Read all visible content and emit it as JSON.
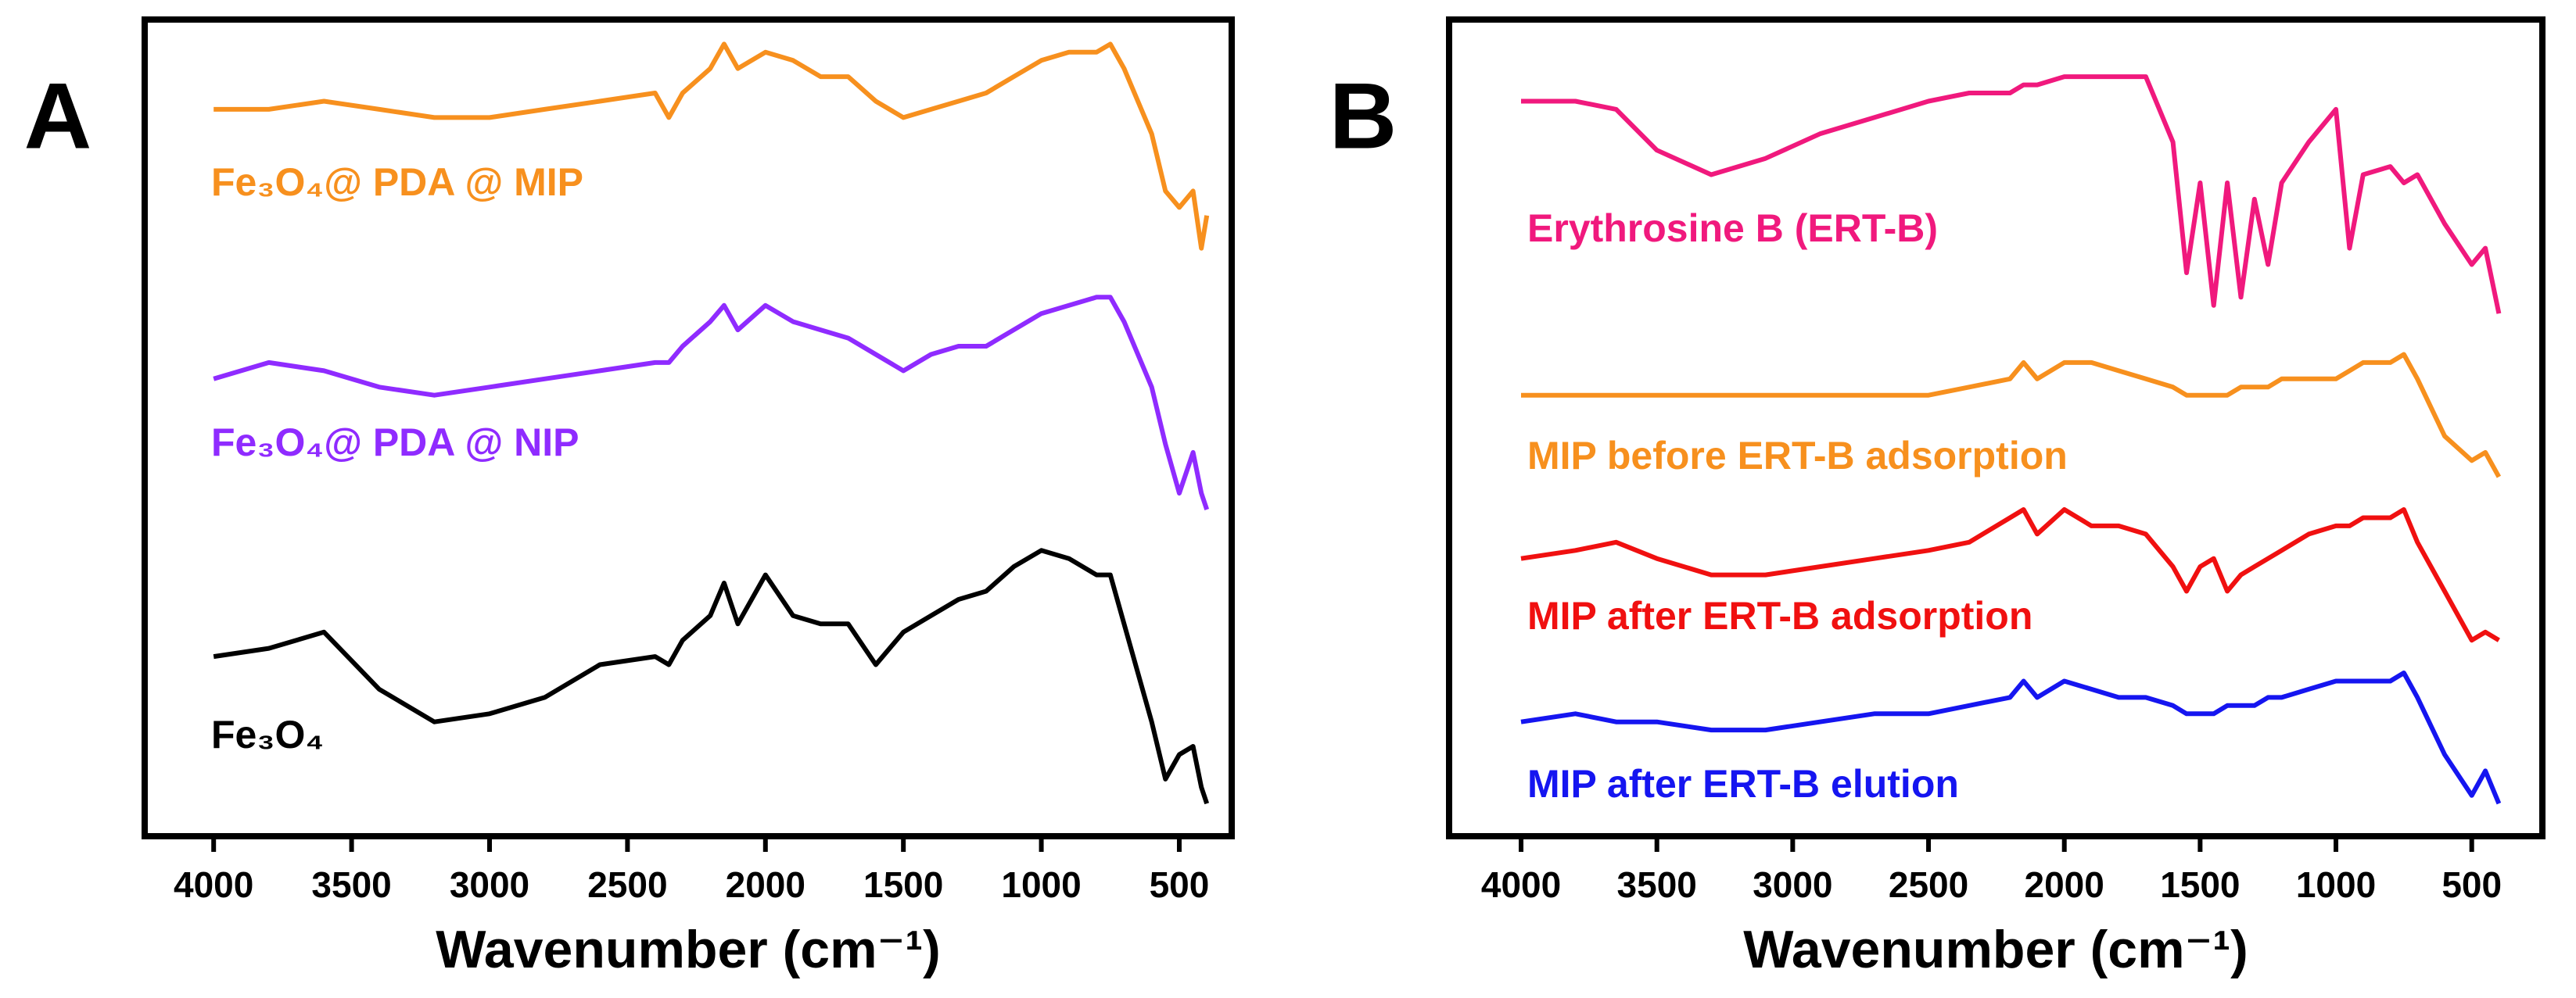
{
  "chart_data": [
    {
      "type": "line",
      "title": "A",
      "xlabel": "Wavenumber (cm⁻¹)",
      "xlim": [
        4250,
        310
      ],
      "xticks": [
        4000,
        3500,
        3000,
        2500,
        2000,
        1500,
        1000,
        500
      ],
      "ylim": [
        0,
        100
      ],
      "x": [
        4000,
        3800,
        3600,
        3400,
        3200,
        3000,
        2800,
        2600,
        2400,
        2350,
        2300,
        2200,
        2150,
        2100,
        2000,
        1900,
        1800,
        1700,
        1600,
        1500,
        1400,
        1300,
        1200,
        1100,
        1000,
        900,
        800,
        750,
        700,
        600,
        550,
        500,
        450,
        420,
        400
      ],
      "series": [
        {
          "name": "Fe₃O₄@ PDA @ MIP",
          "color": "#f7901e",
          "values": [
            89,
            89,
            90,
            89,
            88,
            88,
            89,
            90,
            91,
            88,
            91,
            94,
            97,
            94,
            96,
            95,
            93,
            93,
            90,
            88,
            89,
            90,
            91,
            93,
            95,
            96,
            96,
            97,
            94,
            86,
            79,
            77,
            79,
            72,
            76
          ]
        },
        {
          "name": "Fe₃O₄@ PDA @ NIP",
          "color": "#8f2bff",
          "values": [
            56,
            58,
            57,
            55,
            54,
            55,
            56,
            57,
            58,
            58,
            60,
            63,
            65,
            62,
            65,
            63,
            62,
            61,
            59,
            57,
            59,
            60,
            60,
            62,
            64,
            65,
            66,
            66,
            63,
            55,
            48,
            42,
            47,
            42,
            40
          ]
        },
        {
          "name": "Fe₃O₄",
          "color": "#000000",
          "values": [
            22,
            23,
            25,
            18,
            14,
            15,
            17,
            21,
            22,
            21,
            24,
            27,
            31,
            26,
            32,
            27,
            26,
            26,
            21,
            25,
            27,
            29,
            30,
            33,
            35,
            34,
            32,
            32,
            26,
            14,
            7,
            10,
            11,
            6,
            4
          ]
        }
      ]
    },
    {
      "type": "line",
      "title": "B",
      "xlabel": "Wavenumber (cm⁻¹)",
      "xlim": [
        4265,
        240
      ],
      "xticks": [
        4000,
        3500,
        3000,
        2500,
        2000,
        1500,
        1000,
        500
      ],
      "ylim": [
        0,
        100
      ],
      "x": [
        4000,
        3800,
        3650,
        3500,
        3300,
        3100,
        2900,
        2700,
        2500,
        2350,
        2200,
        2150,
        2100,
        2000,
        1900,
        1800,
        1700,
        1600,
        1550,
        1500,
        1450,
        1400,
        1350,
        1300,
        1250,
        1200,
        1100,
        1000,
        950,
        900,
        800,
        750,
        700,
        600,
        500,
        450,
        400
      ],
      "series": [
        {
          "name": "Erythrosine B (ERT-B)",
          "color": "#f0197d",
          "values": [
            90,
            90,
            89,
            84,
            81,
            83,
            86,
            88,
            90,
            91,
            91,
            92,
            92,
            93,
            93,
            93,
            93,
            85,
            69,
            80,
            65,
            80,
            66,
            78,
            70,
            80,
            85,
            89,
            72,
            81,
            82,
            80,
            81,
            75,
            70,
            72,
            64
          ]
        },
        {
          "name": "MIP before ERT-B adsorption",
          "color": "#f7901e",
          "values": [
            54,
            54,
            54,
            54,
            54,
            54,
            54,
            54,
            54,
            55,
            56,
            58,
            56,
            58,
            58,
            57,
            56,
            55,
            54,
            54,
            54,
            54,
            55,
            55,
            55,
            56,
            56,
            56,
            57,
            58,
            58,
            59,
            56,
            49,
            46,
            47,
            44
          ]
        },
        {
          "name": "MIP after ERT-B adsorption",
          "color": "#f01010",
          "values": [
            34,
            35,
            36,
            34,
            32,
            32,
            33,
            34,
            35,
            36,
            39,
            40,
            37,
            40,
            38,
            38,
            37,
            33,
            30,
            33,
            34,
            30,
            32,
            33,
            34,
            35,
            37,
            38,
            38,
            39,
            39,
            40,
            36,
            30,
            24,
            25,
            24
          ]
        },
        {
          "name": "MIP after ERT-B elution",
          "color": "#1515f0",
          "values": [
            14,
            15,
            14,
            14,
            13,
            13,
            14,
            15,
            15,
            16,
            17,
            19,
            17,
            19,
            18,
            17,
            17,
            16,
            15,
            15,
            15,
            16,
            16,
            16,
            17,
            17,
            18,
            19,
            19,
            19,
            19,
            20,
            17,
            10,
            5,
            8,
            4
          ]
        }
      ]
    }
  ]
}
